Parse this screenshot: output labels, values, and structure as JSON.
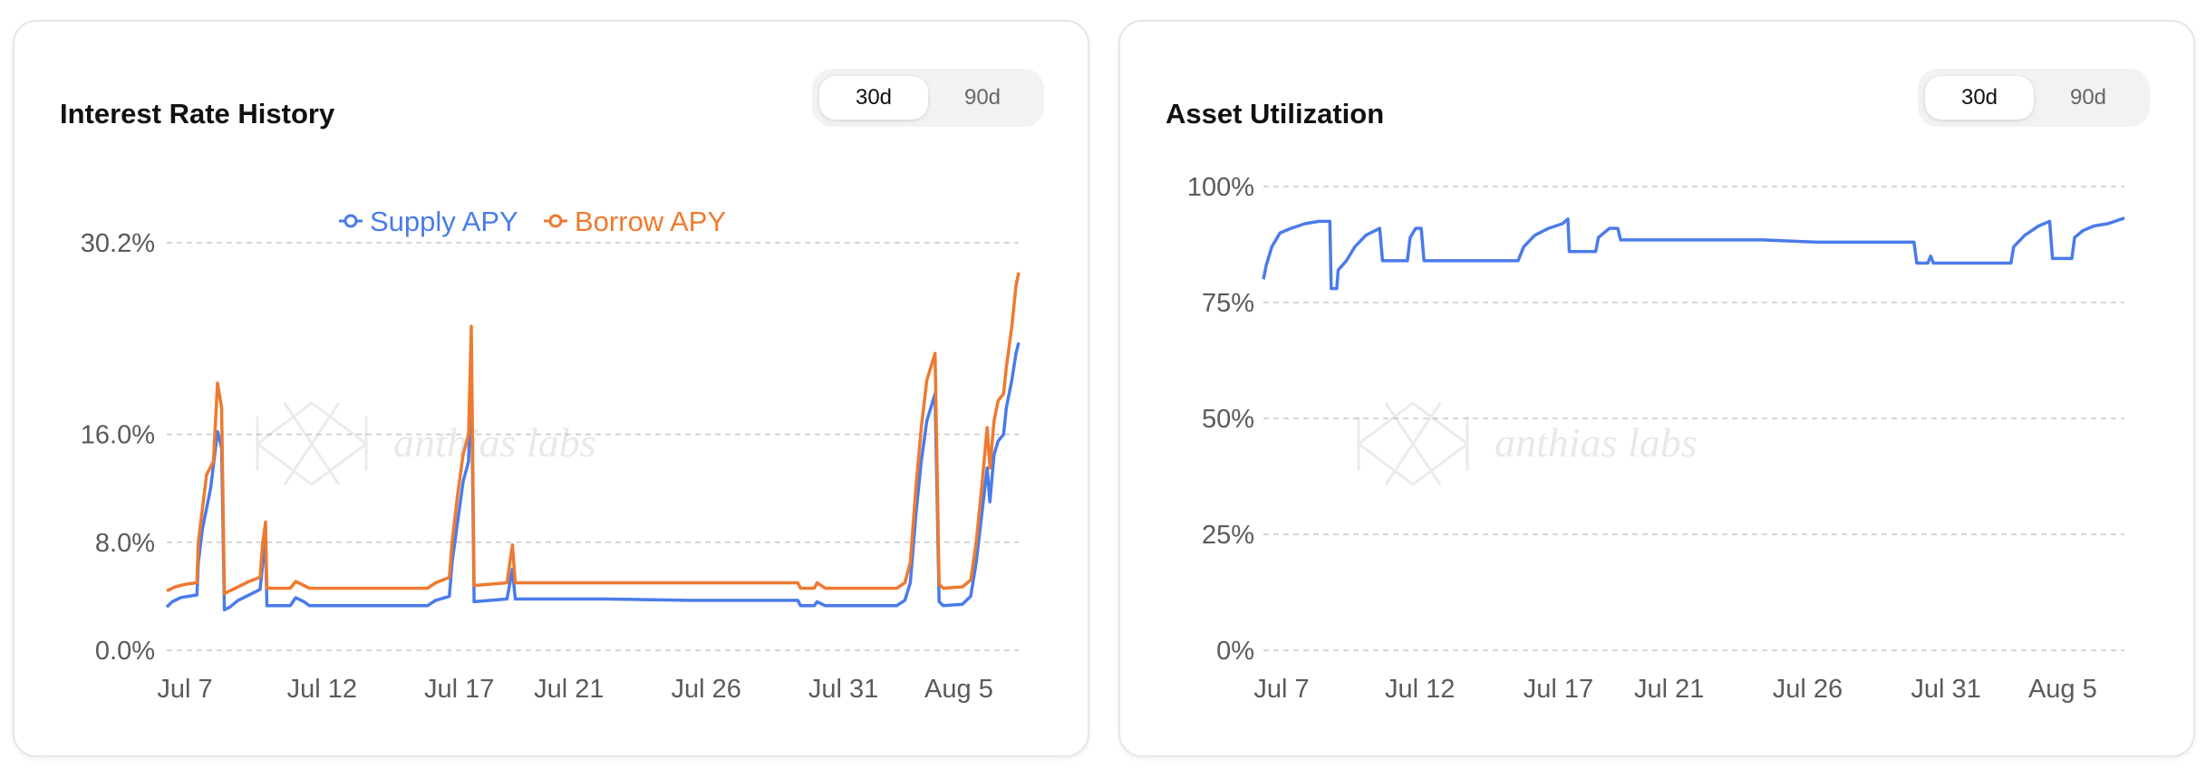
{
  "cards": [
    {
      "title": "Interest Rate History",
      "ranges": [
        "30d",
        "90d"
      ],
      "active_range": "30d"
    },
    {
      "title": "Asset Utilization",
      "ranges": [
        "30d",
        "90d"
      ],
      "active_range": "30d"
    }
  ],
  "watermark": "anthias labs",
  "colors": {
    "supply": "#4a7bea",
    "borrow": "#ee7a30",
    "utilization": "#4a7bea",
    "grid": "#c8c8c8"
  },
  "chart_data": [
    {
      "type": "line",
      "title": "Interest Rate History",
      "x_tick_labels": [
        "Jul 7",
        "Jul 12",
        "Jul 17",
        "Jul 21",
        "Jul 26",
        "Jul 31",
        "Aug 5"
      ],
      "x_ticks_day": [
        0,
        5,
        10,
        14,
        19,
        24,
        29
      ],
      "y_tick_labels": [
        "0.0%",
        "8.0%",
        "16.0%",
        "30.2%"
      ],
      "y_ticks": [
        0,
        8,
        16,
        30.2
      ],
      "ylim": [
        0,
        30.2
      ],
      "grid": true,
      "legend_position": "top-center",
      "series": [
        {
          "name": "Supply APY",
          "color": "#4a7bea",
          "points": [
            [
              0,
              3.2
            ],
            [
              0.2,
              3.6
            ],
            [
              0.5,
              3.9
            ],
            [
              1.1,
              4.1
            ],
            [
              1.15,
              6.5
            ],
            [
              1.3,
              9.0
            ],
            [
              1.45,
              10.5
            ],
            [
              1.6,
              12.0
            ],
            [
              1.85,
              16.2
            ],
            [
              2.0,
              15.0
            ],
            [
              2.1,
              3.0
            ],
            [
              2.3,
              3.2
            ],
            [
              2.6,
              3.7
            ],
            [
              3.0,
              4.1
            ],
            [
              3.4,
              4.5
            ],
            [
              3.5,
              6.5
            ],
            [
              3.6,
              8.0
            ],
            [
              3.65,
              3.3
            ],
            [
              4.5,
              3.3
            ],
            [
              4.7,
              3.9
            ],
            [
              5.0,
              3.6
            ],
            [
              5.2,
              3.3
            ],
            [
              9.5,
              3.3
            ],
            [
              9.8,
              3.7
            ],
            [
              10.3,
              4.0
            ],
            [
              10.4,
              6.5
            ],
            [
              10.6,
              9.5
            ],
            [
              10.8,
              12.5
            ],
            [
              11.0,
              14.0
            ],
            [
              11.1,
              21.0
            ],
            [
              11.2,
              3.6
            ],
            [
              12.4,
              3.8
            ],
            [
              12.6,
              6.0
            ],
            [
              12.7,
              3.8
            ],
            [
              16.0,
              3.8
            ],
            [
              19.0,
              3.7
            ],
            [
              23.0,
              3.7
            ],
            [
              23.1,
              3.3
            ],
            [
              23.6,
              3.3
            ],
            [
              23.7,
              3.6
            ],
            [
              24.0,
              3.3
            ],
            [
              26.6,
              3.3
            ],
            [
              26.9,
              3.7
            ],
            [
              27.1,
              5.0
            ],
            [
              27.3,
              10.0
            ],
            [
              27.5,
              14.0
            ],
            [
              27.7,
              17.0
            ],
            [
              28.0,
              19.0
            ],
            [
              28.15,
              3.6
            ],
            [
              28.3,
              3.3
            ],
            [
              29.0,
              3.4
            ],
            [
              29.3,
              4.0
            ],
            [
              29.5,
              6.5
            ],
            [
              29.7,
              10.0
            ],
            [
              29.9,
              13.5
            ],
            [
              30.0,
              11.0
            ],
            [
              30.15,
              14.5
            ],
            [
              30.3,
              15.5
            ],
            [
              30.5,
              16.0
            ],
            [
              30.6,
              18.0
            ],
            [
              30.8,
              20.0
            ],
            [
              30.95,
              22.0
            ],
            [
              31.05,
              22.8
            ]
          ]
        },
        {
          "name": "Borrow APY",
          "color": "#ee7a30",
          "points": [
            [
              0,
              4.4
            ],
            [
              0.3,
              4.7
            ],
            [
              0.7,
              4.9
            ],
            [
              1.1,
              5.0
            ],
            [
              1.15,
              8.0
            ],
            [
              1.3,
              10.5
            ],
            [
              1.45,
              13.0
            ],
            [
              1.7,
              14.0
            ],
            [
              1.85,
              19.8
            ],
            [
              2.0,
              18.0
            ],
            [
              2.1,
              4.2
            ],
            [
              2.3,
              4.4
            ],
            [
              2.6,
              4.7
            ],
            [
              3.0,
              5.1
            ],
            [
              3.4,
              5.4
            ],
            [
              3.5,
              8.0
            ],
            [
              3.6,
              9.5
            ],
            [
              3.65,
              4.6
            ],
            [
              4.5,
              4.6
            ],
            [
              4.7,
              5.1
            ],
            [
              5.0,
              4.8
            ],
            [
              5.2,
              4.6
            ],
            [
              9.5,
              4.6
            ],
            [
              9.8,
              5.0
            ],
            [
              10.3,
              5.4
            ],
            [
              10.4,
              8.0
            ],
            [
              10.6,
              11.5
            ],
            [
              10.8,
              14.5
            ],
            [
              11.0,
              16.0
            ],
            [
              11.1,
              24.0
            ],
            [
              11.2,
              4.8
            ],
            [
              12.4,
              5.0
            ],
            [
              12.6,
              7.8
            ],
            [
              12.7,
              5.0
            ],
            [
              16.0,
              5.0
            ],
            [
              19.0,
              5.0
            ],
            [
              23.0,
              5.0
            ],
            [
              23.1,
              4.6
            ],
            [
              23.6,
              4.6
            ],
            [
              23.7,
              5.0
            ],
            [
              24.0,
              4.6
            ],
            [
              26.6,
              4.6
            ],
            [
              26.9,
              5.0
            ],
            [
              27.1,
              6.5
            ],
            [
              27.3,
              12.0
            ],
            [
              27.5,
              16.5
            ],
            [
              27.7,
              20.0
            ],
            [
              28.0,
              22.0
            ],
            [
              28.15,
              4.9
            ],
            [
              28.3,
              4.6
            ],
            [
              29.0,
              4.7
            ],
            [
              29.3,
              5.2
            ],
            [
              29.5,
              8.0
            ],
            [
              29.7,
              12.0
            ],
            [
              29.9,
              16.5
            ],
            [
              30.0,
              13.5
            ],
            [
              30.15,
              17.0
            ],
            [
              30.3,
              18.5
            ],
            [
              30.5,
              19.0
            ],
            [
              30.6,
              21.0
            ],
            [
              30.8,
              24.0
            ],
            [
              30.95,
              27.0
            ],
            [
              31.05,
              28.0
            ]
          ]
        }
      ]
    },
    {
      "type": "line",
      "title": "Asset Utilization",
      "x_tick_labels": [
        "Jul 7",
        "Jul 12",
        "Jul 17",
        "Jul 21",
        "Jul 26",
        "Jul 31",
        "Aug 5"
      ],
      "x_ticks_day": [
        0,
        5,
        10,
        14,
        19,
        24,
        29
      ],
      "y_tick_labels": [
        "0%",
        "25%",
        "50%",
        "75%",
        "100%"
      ],
      "y_ticks": [
        0,
        25,
        50,
        75,
        100
      ],
      "ylim": [
        0,
        100
      ],
      "grid": true,
      "series": [
        {
          "name": "",
          "color": "#4a7bea",
          "points": [
            [
              0,
              80
            ],
            [
              0.1,
              83
            ],
            [
              0.3,
              87
            ],
            [
              0.6,
              90
            ],
            [
              1.0,
              91
            ],
            [
              1.5,
              92
            ],
            [
              2.0,
              92.5
            ],
            [
              2.4,
              92.5
            ],
            [
              2.45,
              78
            ],
            [
              2.65,
              78
            ],
            [
              2.7,
              82
            ],
            [
              3.0,
              84
            ],
            [
              3.3,
              87
            ],
            [
              3.7,
              89.5
            ],
            [
              4.2,
              91
            ],
            [
              4.3,
              84
            ],
            [
              5.2,
              84
            ],
            [
              5.3,
              89
            ],
            [
              5.5,
              91
            ],
            [
              5.7,
              91
            ],
            [
              5.8,
              84
            ],
            [
              9.2,
              84
            ],
            [
              9.4,
              87
            ],
            [
              9.8,
              89.5
            ],
            [
              10.3,
              91
            ],
            [
              10.8,
              92
            ],
            [
              11.0,
              93
            ],
            [
              11.05,
              86
            ],
            [
              12.0,
              86
            ],
            [
              12.1,
              89
            ],
            [
              12.5,
              91
            ],
            [
              12.8,
              91
            ],
            [
              12.9,
              88.5
            ],
            [
              18.0,
              88.5
            ],
            [
              20.0,
              88
            ],
            [
              23.5,
              88
            ],
            [
              23.6,
              83.5
            ],
            [
              24.0,
              83.5
            ],
            [
              24.1,
              85
            ],
            [
              24.2,
              83.5
            ],
            [
              27.0,
              83.5
            ],
            [
              27.1,
              87
            ],
            [
              27.5,
              89.5
            ],
            [
              28.0,
              91.5
            ],
            [
              28.4,
              92.5
            ],
            [
              28.5,
              84.5
            ],
            [
              29.2,
              84.5
            ],
            [
              29.3,
              89
            ],
            [
              29.6,
              90.5
            ],
            [
              30.0,
              91.5
            ],
            [
              30.5,
              92
            ],
            [
              31.0,
              93
            ],
            [
              31.1,
              93.2
            ]
          ]
        }
      ]
    }
  ]
}
